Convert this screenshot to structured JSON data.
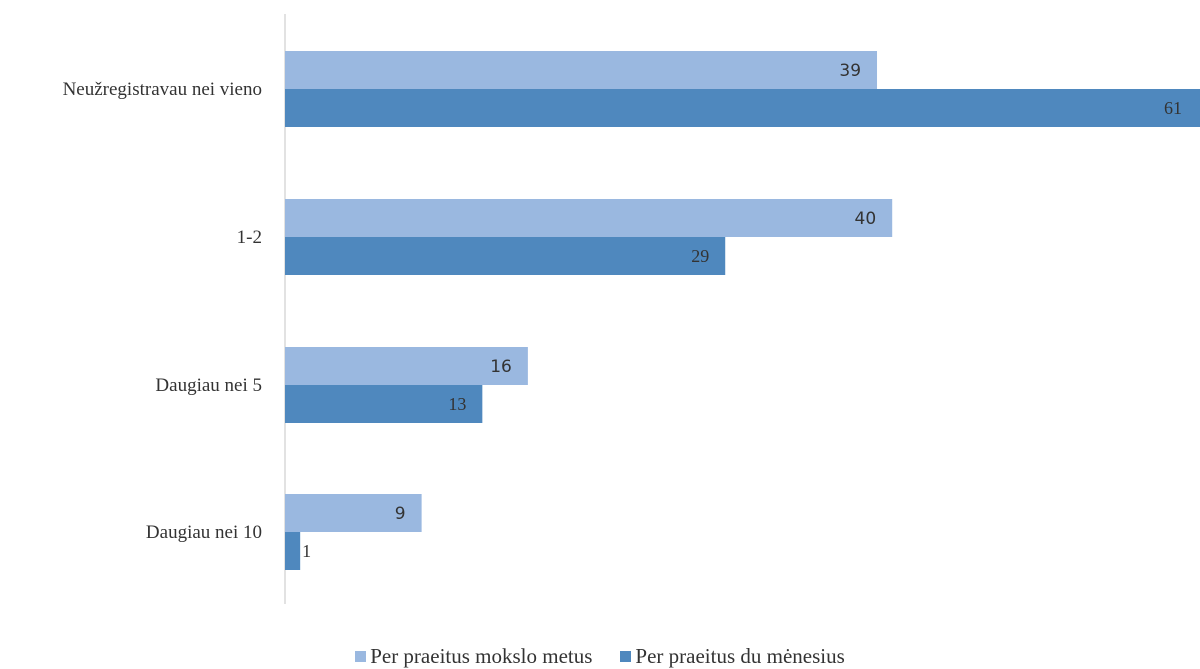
{
  "chart_data": {
    "type": "bar",
    "orientation": "horizontal",
    "title": "",
    "xlabel": "",
    "ylabel": "",
    "categories": [
      "Neužregistravau nei vieno",
      "1-2",
      "Daugiau nei 5",
      "Daugiau nei 10"
    ],
    "series": [
      {
        "name": "Per praeitus mokslo metus",
        "values": [
          39,
          40,
          16,
          9
        ],
        "color": "#9ab8e0"
      },
      {
        "name": "Per praeitus du mėnesius",
        "values": [
          61,
          29,
          13,
          1
        ],
        "color": "#4f88be"
      }
    ],
    "xlim": [
      0,
      60
    ],
    "grid": false,
    "legend_position": "bottom"
  }
}
